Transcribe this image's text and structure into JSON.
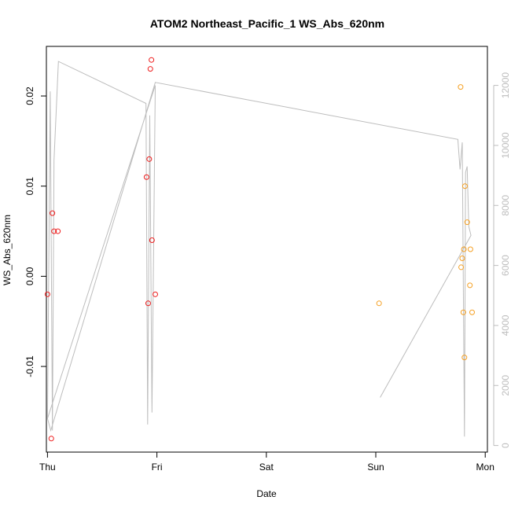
{
  "chart_data": {
    "type": "scatter",
    "title": "ATOM2 Northeast_Pacific_1 WS_Abs_620nm",
    "xlabel": "Date",
    "ylabel": "WS_Abs_620nm",
    "xlim": [
      -0.01,
      4.02
    ],
    "ylim": [
      -0.0195,
      0.0255
    ],
    "y2lim": [
      -220,
      13300
    ],
    "x_ticks": [
      {
        "value": 0,
        "label": "Thu"
      },
      {
        "value": 1,
        "label": "Fri"
      },
      {
        "value": 2,
        "label": "Sat"
      },
      {
        "value": 3,
        "label": "Sun"
      },
      {
        "value": 4,
        "label": "Mon"
      }
    ],
    "y_ticks": [
      {
        "value": -0.01,
        "label": "-0.01"
      },
      {
        "value": 0.0,
        "label": "0.00"
      },
      {
        "value": 0.01,
        "label": "0.01"
      },
      {
        "value": 0.02,
        "label": "0.02"
      }
    ],
    "y2_ticks": [
      {
        "value": 0,
        "label": "0"
      },
      {
        "value": 2000,
        "label": "2000"
      },
      {
        "value": 4000,
        "label": "4000"
      },
      {
        "value": 6000,
        "label": "6000"
      },
      {
        "value": 8000,
        "label": "8000"
      },
      {
        "value": 10000,
        "label": "10000"
      },
      {
        "value": 12000,
        "label": "12000"
      }
    ],
    "grid": false,
    "colors": {
      "series_red": "#ee1c1c",
      "series_orange": "#f5a023",
      "depth_line": "#bdbdbd",
      "axis": "#000000",
      "right_axis": "#bdbdbd"
    },
    "series": [
      {
        "color": "#ee1c1c",
        "points": [
          {
            "x": 0.0,
            "y": -0.002
          },
          {
            "x": 0.035,
            "y": -0.018
          },
          {
            "x": 0.045,
            "y": 0.007
          },
          {
            "x": 0.06,
            "y": 0.005
          },
          {
            "x": 0.095,
            "y": 0.005
          },
          {
            "x": 0.905,
            "y": 0.011
          },
          {
            "x": 0.92,
            "y": -0.003
          },
          {
            "x": 0.93,
            "y": 0.013
          },
          {
            "x": 0.94,
            "y": 0.023
          },
          {
            "x": 0.95,
            "y": 0.024
          },
          {
            "x": 0.955,
            "y": 0.004
          },
          {
            "x": 0.985,
            "y": -0.002
          }
        ]
      },
      {
        "color": "#f5a023",
        "points": [
          {
            "x": 3.03,
            "y": -0.003
          },
          {
            "x": 3.775,
            "y": 0.021
          },
          {
            "x": 3.78,
            "y": 0.001
          },
          {
            "x": 3.79,
            "y": 0.002
          },
          {
            "x": 3.8,
            "y": -0.004
          },
          {
            "x": 3.805,
            "y": 0.003
          },
          {
            "x": 3.81,
            "y": -0.009
          },
          {
            "x": 3.815,
            "y": 0.01
          },
          {
            "x": 3.835,
            "y": 0.006
          },
          {
            "x": 3.86,
            "y": -0.001
          },
          {
            "x": 3.865,
            "y": 0.003
          },
          {
            "x": 3.88,
            "y": -0.004
          }
        ]
      }
    ],
    "depth_line": [
      {
        "x": 0.0,
        "y2": 900
      },
      {
        "x": 0.025,
        "y2": 11800
      },
      {
        "x": 0.045,
        "y2": 500
      },
      {
        "x": 0.06,
        "y2": 9500
      },
      {
        "x": 0.1,
        "y2": 12800
      },
      {
        "x": 0.9,
        "y2": 11400
      },
      {
        "x": 0.915,
        "y2": 700
      },
      {
        "x": 0.935,
        "y2": 11000
      },
      {
        "x": 0.955,
        "y2": 1100
      },
      {
        "x": 0.985,
        "y2": 12000
      },
      {
        "x": 0.0,
        "y2": 900
      },
      {
        "x": 0.03,
        "y2": 500
      },
      {
        "x": 0.985,
        "y2": 12100
      },
      {
        "x": 3.75,
        "y2": 10200
      },
      {
        "x": 3.77,
        "y2": 9200
      },
      {
        "x": 3.79,
        "y2": 10100
      },
      {
        "x": 3.81,
        "y2": 300
      },
      {
        "x": 3.82,
        "y2": 9100
      },
      {
        "x": 3.835,
        "y2": 9300
      },
      {
        "x": 3.85,
        "y2": 7300
      },
      {
        "x": 3.87,
        "y2": 7000
      },
      {
        "x": 3.04,
        "y2": 1600
      }
    ]
  }
}
